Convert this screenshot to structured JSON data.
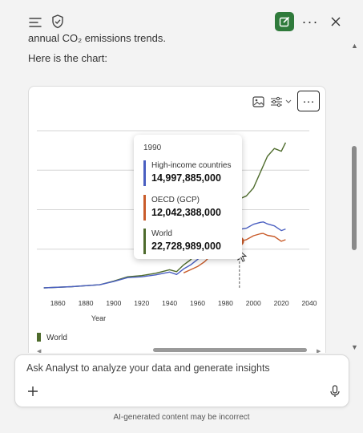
{
  "topbar": {
    "menu_icon": "menu-icon",
    "shield_icon": "shield-check-icon",
    "compose_icon": "compose-icon",
    "more_label": "···",
    "close_icon": "close-icon",
    "accent_color": "#2f7a3b"
  },
  "message": {
    "clipped_text": "annual CO₂ emissions trends.",
    "here_text": "Here is the chart:"
  },
  "chart_card": {
    "more_label": "···"
  },
  "tooltip": {
    "year": "1990",
    "entries": [
      {
        "name": "High-income countries",
        "value": "14,997,885,000",
        "color": "#4a5fc1"
      },
      {
        "name": "OECD (GCP)",
        "value": "12,042,388,000",
        "color": "#c95c2b"
      },
      {
        "name": "World",
        "value": "22,728,989,000",
        "color": "#4e6b2c"
      }
    ]
  },
  "legend": {
    "label": "World"
  },
  "chart_data": {
    "type": "line",
    "xlabel": "Year",
    "ylabel": "",
    "xlim": [
      1845,
      2040
    ],
    "xticks": [
      "1860",
      "1880",
      "1900",
      "1920",
      "1940",
      "1960",
      "1980",
      "2000",
      "2020",
      "2040"
    ],
    "highlight_x": 1990,
    "series": [
      {
        "name": "World",
        "color": "#4e6b2c",
        "x": [
          1850,
          1870,
          1890,
          1900,
          1910,
          1920,
          1930,
          1940,
          1945,
          1950,
          1955,
          1960,
          1965,
          1970,
          1975,
          1980,
          1985,
          1990,
          1995,
          2000,
          2005,
          2010,
          2015,
          2020,
          2023
        ],
        "y": [
          0.2,
          0.5,
          1.0,
          1.9,
          3.0,
          3.3,
          3.9,
          4.8,
          4.3,
          6.0,
          7.3,
          9.4,
          11.5,
          14.9,
          17.0,
          19.4,
          19.8,
          22.7,
          23.5,
          25.5,
          29.5,
          33.5,
          35.5,
          34.8,
          37.0
        ]
      },
      {
        "name": "High-income countries",
        "color": "#4a5fc1",
        "x": [
          1850,
          1870,
          1890,
          1900,
          1910,
          1920,
          1930,
          1940,
          1945,
          1950,
          1955,
          1960,
          1965,
          1970,
          1975,
          1980,
          1985,
          1990,
          1995,
          2000,
          2005,
          2007,
          2010,
          2015,
          2020,
          2023
        ],
        "y": [
          0.2,
          0.5,
          1.0,
          1.8,
          2.8,
          3.0,
          3.5,
          4.2,
          3.6,
          5.0,
          6.0,
          7.4,
          8.8,
          10.9,
          11.6,
          13.1,
          12.7,
          15.0,
          15.3,
          16.3,
          16.8,
          16.9,
          16.4,
          15.9,
          14.7,
          15.1
        ]
      },
      {
        "name": "OECD (GCP)",
        "color": "#c95c2b",
        "x": [
          1950,
          1955,
          1960,
          1965,
          1970,
          1975,
          1980,
          1985,
          1990,
          1995,
          2000,
          2005,
          2007,
          2010,
          2015,
          2020,
          2023
        ],
        "y": [
          4.0,
          4.8,
          5.6,
          6.8,
          8.5,
          9.4,
          11.0,
          10.6,
          12.0,
          12.4,
          13.4,
          13.9,
          14.0,
          13.5,
          13.2,
          12.0,
          12.4
        ]
      }
    ],
    "grid": true,
    "legend_position": "bottom-left"
  }
}
